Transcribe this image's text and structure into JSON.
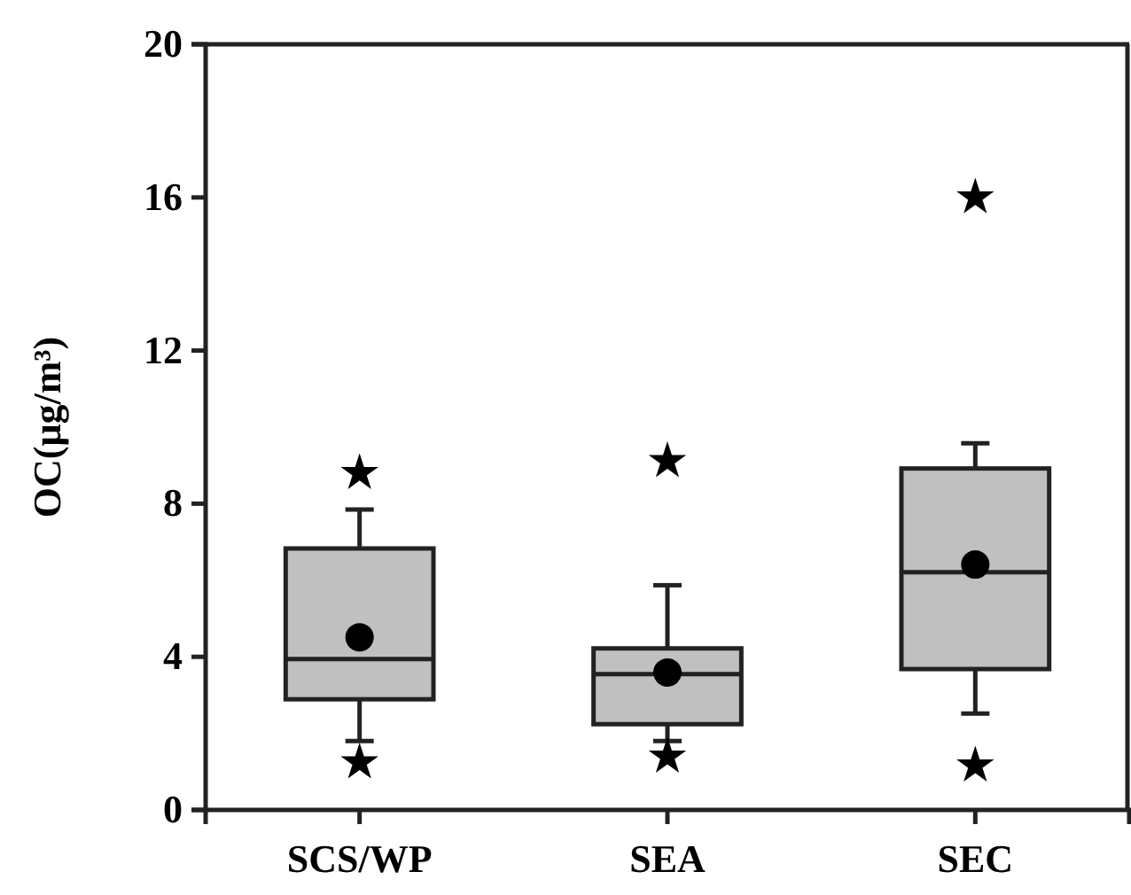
{
  "chart_data": {
    "type": "box",
    "ylabel": "OC(μg/m³)",
    "categories": [
      "SCS/WP",
      "SEA",
      "SEC"
    ],
    "ylim": [
      0,
      20
    ],
    "yticks": [
      0,
      4,
      8,
      12,
      16,
      20
    ],
    "color": "#c0c0c0",
    "grid": false,
    "marker": "star",
    "boxes": [
      {
        "low": 1.8,
        "q1": 2.89,
        "median": 3.94,
        "q3": 6.83,
        "high": 7.85,
        "mean": 4.51,
        "outliers": [
          8.8,
          1.24
        ]
      },
      {
        "low": 1.8,
        "q1": 2.24,
        "median": 3.55,
        "q3": 4.22,
        "high": 5.87,
        "mean": 3.59,
        "outliers": [
          9.11,
          1.39
        ]
      },
      {
        "low": 2.52,
        "q1": 3.68,
        "median": 6.21,
        "q3": 8.92,
        "high": 9.58,
        "mean": 6.41,
        "outliers": [
          16.0,
          1.16
        ]
      }
    ]
  }
}
